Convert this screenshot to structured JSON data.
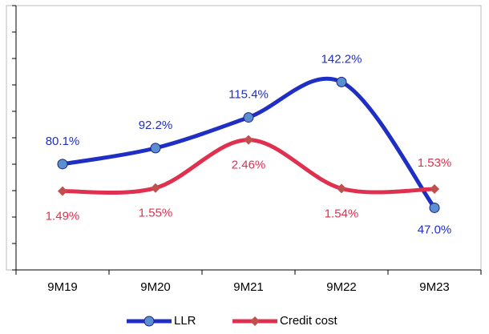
{
  "chart_data": {
    "type": "line",
    "categories": [
      "9M19",
      "9M20",
      "9M21",
      "9M22",
      "9M23"
    ],
    "series": [
      {
        "name": "LLR",
        "color": "#1f2fc4",
        "marker_color": "#5b8fd1",
        "values": [
          80.1,
          92.2,
          115.4,
          142.2,
          47.0
        ],
        "value_labels": [
          "80.1%",
          "92.2%",
          "115.4%",
          "142.2%",
          "47.0%"
        ]
      },
      {
        "name": "Credit cost",
        "color": "#e0304f",
        "marker_color": "#c0504d",
        "axis": "y2",
        "values": [
          1.49,
          1.55,
          2.46,
          1.54,
          1.53
        ],
        "value_labels": [
          "1.49%",
          "1.55%",
          "2.46%",
          "1.54%",
          "1.53%"
        ]
      }
    ],
    "ylim": [
      0,
      200
    ],
    "yticks": [
      0,
      20,
      40,
      60,
      80,
      100,
      120,
      140,
      160,
      180,
      200
    ],
    "y2lim": [
      0,
      5
    ],
    "grid": false,
    "legend": "bottom"
  }
}
